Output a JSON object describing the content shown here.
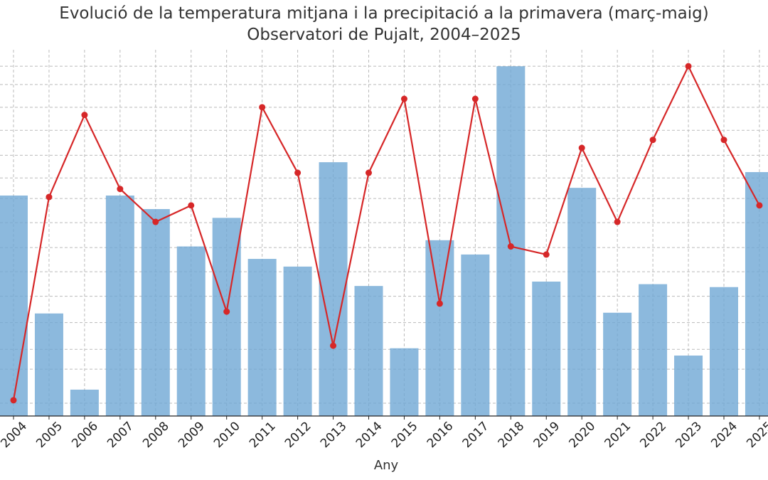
{
  "chart_data": {
    "type": "bar",
    "title": "Evolució de la temperatura mitjana i la precipitació a la primavera (març-maig)",
    "subtitle": "Observatori de Pujalt, 2004–2025",
    "xlabel": "Any",
    "categories": [
      "2004",
      "2005",
      "2006",
      "2007",
      "2008",
      "2009",
      "2010",
      "2011",
      "2012",
      "2013",
      "2014",
      "2015",
      "2016",
      "2017",
      "2018",
      "2019",
      "2020",
      "2021",
      "2022",
      "2023",
      "2024",
      "2025"
    ],
    "series": [
      {
        "type": "bar",
        "values": [
          0.602,
          0.28,
          0.072,
          0.602,
          0.565,
          0.463,
          0.541,
          0.429,
          0.408,
          0.693,
          0.355,
          0.185,
          0.48,
          0.441,
          0.955,
          0.367,
          0.623,
          0.282,
          0.36,
          0.165,
          0.352,
          0.666
        ]
      },
      {
        "type": "line",
        "values": [
          0.043,
          0.598,
          0.822,
          0.62,
          0.53,
          0.575,
          0.285,
          0.843,
          0.664,
          0.192,
          0.664,
          0.866,
          0.307,
          0.866,
          0.463,
          0.441,
          0.732,
          0.53,
          0.754,
          0.955,
          0.754,
          0.575
        ]
      }
    ],
    "ylim": [
      0,
      1
    ],
    "grid": true,
    "colors": {
      "bar": "#6fa8d4",
      "line": "#d62728",
      "grid": "#bbbbbb",
      "axis": "#222222"
    }
  }
}
